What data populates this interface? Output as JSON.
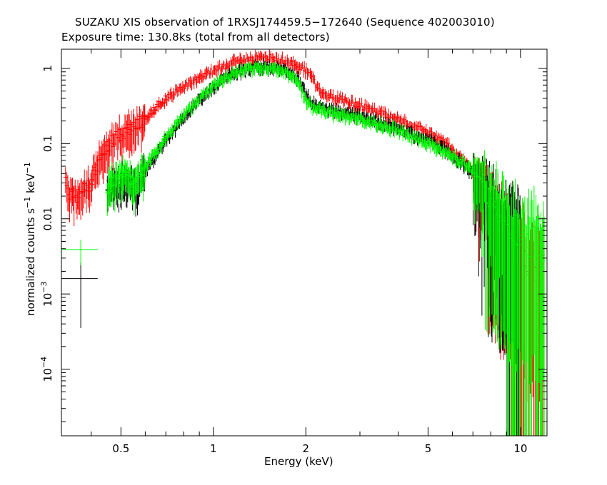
{
  "chart_data": {
    "type": "scatter",
    "title": "SUZAKU XIS observation of 1RXSJ174459.5−172640 (Sequence 402003010)",
    "subtitle": "Exposure time: 130.8ks (total from all detectors)",
    "xlabel": "Energy (keV)",
    "ylabel": {
      "text": "normalized counts s",
      "sup1": "−1",
      "mid": " keV",
      "sup2": "−1"
    },
    "x_scale": "log",
    "y_scale": "log",
    "xlim": [
      0.32,
      12.2
    ],
    "ylim": [
      1.3e-05,
      1.8
    ],
    "x_ticks": [
      {
        "v": 0.5,
        "label": "0.5"
      },
      {
        "v": 1,
        "label": "1"
      },
      {
        "v": 2,
        "label": "2"
      },
      {
        "v": 5,
        "label": "5"
      },
      {
        "v": 10,
        "label": "10"
      }
    ],
    "y_ticks": [
      {
        "v": 1,
        "base": "1",
        "exp": ""
      },
      {
        "v": 0.1,
        "base": "0.1",
        "exp": ""
      },
      {
        "v": 0.01,
        "base": "0.01",
        "exp": ""
      },
      {
        "v": 0.001,
        "base": "10",
        "exp": "−3"
      },
      {
        "v": 0.0001,
        "base": "10",
        "exp": "−4"
      }
    ],
    "series": [
      {
        "color": "#ff0000",
        "points": [
          [
            0.33,
            0.03
          ],
          [
            0.34,
            0.022
          ],
          [
            0.36,
            0.02
          ],
          [
            0.38,
            0.025
          ],
          [
            0.4,
            0.03
          ],
          [
            0.42,
            0.055
          ],
          [
            0.44,
            0.08
          ],
          [
            0.46,
            0.1
          ],
          [
            0.48,
            0.12
          ],
          [
            0.5,
            0.13
          ],
          [
            0.55,
            0.17
          ],
          [
            0.6,
            0.22
          ],
          [
            0.65,
            0.3
          ],
          [
            0.7,
            0.4
          ],
          [
            0.75,
            0.48
          ],
          [
            0.8,
            0.58
          ],
          [
            0.9,
            0.75
          ],
          [
            1.0,
            0.95
          ],
          [
            1.1,
            1.1
          ],
          [
            1.2,
            1.25
          ],
          [
            1.3,
            1.35
          ],
          [
            1.4,
            1.4
          ],
          [
            1.5,
            1.4
          ],
          [
            1.6,
            1.35
          ],
          [
            1.7,
            1.25
          ],
          [
            1.8,
            1.2
          ],
          [
            1.9,
            1.05
          ],
          [
            2.0,
            0.95
          ],
          [
            2.1,
            0.75
          ],
          [
            2.2,
            0.55
          ],
          [
            2.3,
            0.45
          ],
          [
            2.5,
            0.4
          ],
          [
            3.0,
            0.32
          ],
          [
            3.5,
            0.26
          ],
          [
            4.0,
            0.21
          ],
          [
            4.5,
            0.17
          ],
          [
            5.0,
            0.14
          ],
          [
            5.5,
            0.11
          ],
          [
            6.0,
            0.085
          ],
          [
            6.5,
            0.06
          ],
          [
            7.0,
            0.042
          ],
          [
            7.5,
            0.028
          ],
          [
            8.0,
            0.018
          ],
          [
            8.5,
            0.012
          ],
          [
            9.0,
            0.008
          ],
          [
            9.5,
            0.006
          ],
          [
            10.0,
            0.004
          ],
          [
            10.5,
            0.003
          ],
          [
            11.0,
            0.0025
          ],
          [
            11.5,
            0.002
          ],
          [
            12.0,
            0.002
          ]
        ]
      },
      {
        "color": "#000000",
        "points": [
          [
            0.37,
            0.0016
          ],
          [
            0.45,
            0.028
          ],
          [
            0.48,
            0.03
          ],
          [
            0.52,
            0.035
          ],
          [
            0.56,
            0.028
          ],
          [
            0.6,
            0.045
          ],
          [
            0.65,
            0.07
          ],
          [
            0.7,
            0.11
          ],
          [
            0.75,
            0.16
          ],
          [
            0.8,
            0.23
          ],
          [
            0.9,
            0.38
          ],
          [
            1.0,
            0.55
          ],
          [
            1.1,
            0.75
          ],
          [
            1.2,
            0.9
          ],
          [
            1.3,
            1.0
          ],
          [
            1.4,
            1.05
          ],
          [
            1.5,
            1.05
          ],
          [
            1.6,
            1.0
          ],
          [
            1.7,
            0.95
          ],
          [
            1.8,
            0.85
          ],
          [
            1.9,
            0.7
          ],
          [
            2.0,
            0.45
          ],
          [
            2.1,
            0.35
          ],
          [
            2.3,
            0.3
          ],
          [
            2.5,
            0.27
          ],
          [
            3.0,
            0.23
          ],
          [
            3.5,
            0.19
          ],
          [
            4.0,
            0.16
          ],
          [
            4.5,
            0.13
          ],
          [
            5.0,
            0.11
          ],
          [
            5.5,
            0.09
          ],
          [
            6.0,
            0.07
          ],
          [
            6.5,
            0.055
          ],
          [
            7.0,
            0.04
          ],
          [
            7.5,
            0.028
          ],
          [
            8.0,
            0.019
          ],
          [
            8.5,
            0.013
          ],
          [
            9.0,
            0.009
          ],
          [
            9.5,
            0.007
          ],
          [
            10.0,
            0.006
          ]
        ]
      },
      {
        "color": "#00ff00",
        "points": [
          [
            0.37,
            0.0039
          ],
          [
            0.45,
            0.025
          ],
          [
            0.48,
            0.035
          ],
          [
            0.52,
            0.04
          ],
          [
            0.56,
            0.03
          ],
          [
            0.6,
            0.05
          ],
          [
            0.65,
            0.075
          ],
          [
            0.7,
            0.12
          ],
          [
            0.75,
            0.17
          ],
          [
            0.8,
            0.24
          ],
          [
            0.9,
            0.4
          ],
          [
            1.0,
            0.58
          ],
          [
            1.1,
            0.78
          ],
          [
            1.2,
            0.92
          ],
          [
            1.3,
            1.0
          ],
          [
            1.4,
            1.02
          ],
          [
            1.5,
            1.0
          ],
          [
            1.6,
            0.97
          ],
          [
            1.7,
            0.92
          ],
          [
            1.8,
            0.82
          ],
          [
            1.9,
            0.65
          ],
          [
            2.0,
            0.38
          ],
          [
            2.1,
            0.3
          ],
          [
            2.3,
            0.27
          ],
          [
            2.5,
            0.25
          ],
          [
            3.0,
            0.21
          ],
          [
            3.5,
            0.18
          ],
          [
            4.0,
            0.15
          ],
          [
            4.5,
            0.12
          ],
          [
            5.0,
            0.1
          ],
          [
            5.5,
            0.085
          ],
          [
            6.0,
            0.07
          ],
          [
            6.5,
            0.055
          ],
          [
            7.0,
            0.042
          ],
          [
            7.5,
            0.032
          ],
          [
            8.0,
            0.022
          ],
          [
            8.5,
            0.015
          ],
          [
            9.0,
            0.011
          ],
          [
            9.5,
            0.008
          ],
          [
            10.0,
            0.006
          ],
          [
            11.0,
            0.005
          ],
          [
            12.0,
            0.004
          ]
        ]
      }
    ]
  }
}
